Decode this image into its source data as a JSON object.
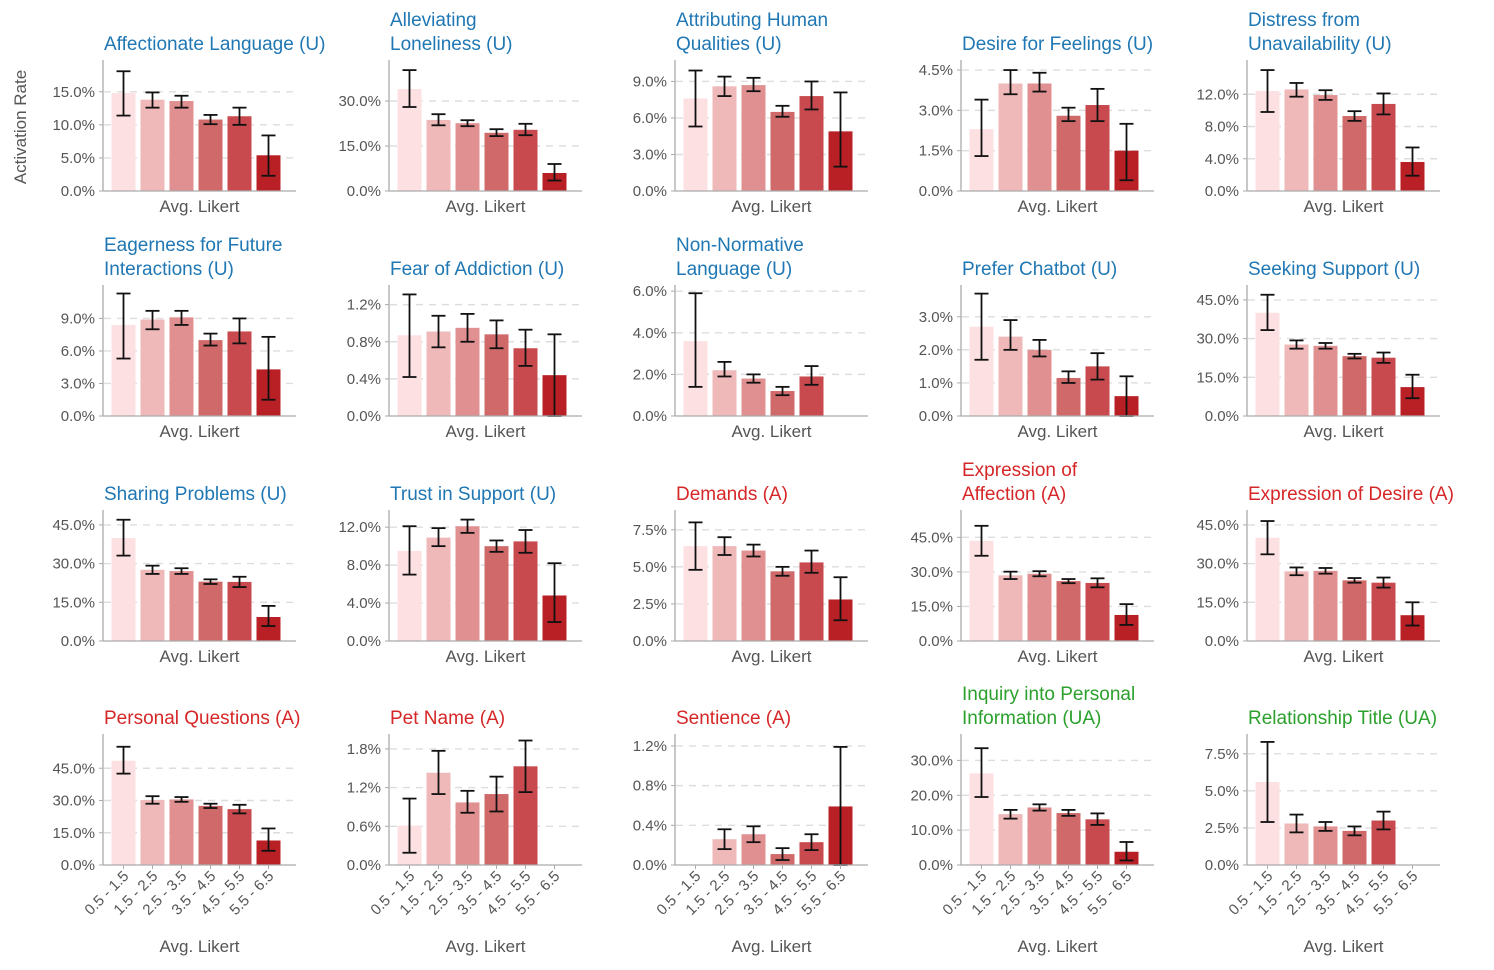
{
  "figure": {
    "ylabel": "Activation Rate",
    "xlabel": "Avg. Likert",
    "categories": [
      "0.5 - 1.5",
      "1.5 - 2.5",
      "2.5 - 3.5",
      "3.5 - 4.5",
      "4.5 - 5.5",
      "5.5 - 6.5"
    ],
    "bar_colors": [
      "#fde0e2",
      "#efb9b9",
      "#e09090",
      "#d06a6a",
      "#c84a4e",
      "#b82026"
    ],
    "title_colors": {
      "U": "#1f77b4",
      "A": "#d62728",
      "UA": "#2ca02c"
    }
  },
  "chart_data": [
    {
      "type": "bar",
      "title": [
        "Affectionate Language (U)"
      ],
      "group": "U",
      "ylim": [
        0,
        19.5
      ],
      "ticks": [
        0,
        5,
        10,
        15
      ],
      "tick_labels": [
        "0.0%",
        "5.0%",
        "10.0%",
        "15.0%"
      ],
      "values": [
        14.8,
        13.8,
        13.6,
        10.8,
        11.3,
        5.4
      ],
      "err_low": [
        11.4,
        12.6,
        12.6,
        10.1,
        10.0,
        2.3
      ],
      "err_high": [
        18.1,
        14.9,
        14.4,
        11.5,
        12.6,
        8.4
      ]
    },
    {
      "type": "bar",
      "title": [
        "Alleviating",
        "Loneliness (U)"
      ],
      "group": "U",
      "ylim": [
        0,
        43
      ],
      "ticks": [
        0,
        15,
        30
      ],
      "tick_labels": [
        "0.0%",
        "15.0%",
        "30.0%"
      ],
      "values": [
        34.0,
        23.7,
        22.6,
        19.4,
        20.4,
        6.0
      ],
      "err_low": [
        28.0,
        21.9,
        21.6,
        18.3,
        18.6,
        3.5
      ],
      "err_high": [
        40.3,
        25.6,
        23.6,
        20.6,
        22.4,
        9.0
      ]
    },
    {
      "type": "bar",
      "title": [
        "Attributing Human",
        "Qualities (U)"
      ],
      "group": "U",
      "ylim": [
        0,
        10.6
      ],
      "ticks": [
        0,
        3,
        6,
        9
      ],
      "tick_labels": [
        "0.0%",
        "3.0%",
        "6.0%",
        "9.0%"
      ],
      "values": [
        7.6,
        8.6,
        8.7,
        6.5,
        7.8,
        4.9
      ],
      "err_low": [
        5.3,
        7.8,
        8.2,
        6.1,
        6.7,
        2.0
      ],
      "err_high": [
        9.9,
        9.4,
        9.3,
        7.0,
        9.0,
        8.1
      ]
    },
    {
      "type": "bar",
      "title": [
        "Desire for Feelings (U)"
      ],
      "group": "U",
      "ylim": [
        0,
        4.8
      ],
      "ticks": [
        0,
        1.5,
        3,
        4.5
      ],
      "tick_labels": [
        "0.0%",
        "1.5%",
        "3.0%",
        "4.5%"
      ],
      "values": [
        2.3,
        4.0,
        4.0,
        2.8,
        3.2,
        1.5
      ],
      "err_low": [
        1.3,
        3.6,
        3.7,
        2.6,
        2.6,
        0.4
      ],
      "err_high": [
        3.4,
        4.5,
        4.4,
        3.1,
        3.8,
        2.5
      ]
    },
    {
      "type": "bar",
      "title": [
        "Distress from",
        "Unavailability (U)"
      ],
      "group": "U",
      "ylim": [
        0,
        16
      ],
      "ticks": [
        0,
        4,
        8,
        12
      ],
      "tick_labels": [
        "0.0%",
        "4.0%",
        "8.0%",
        "12.0%"
      ],
      "values": [
        12.4,
        12.6,
        11.9,
        9.3,
        10.8,
        3.6
      ],
      "err_low": [
        9.8,
        11.7,
        11.3,
        8.7,
        9.5,
        1.9
      ],
      "err_high": [
        15.0,
        13.4,
        12.5,
        9.9,
        12.1,
        5.4
      ]
    },
    {
      "type": "bar",
      "title": [
        "Eagerness for Future",
        "Interactions (U)"
      ],
      "group": "U",
      "ylim": [
        0,
        11.9
      ],
      "ticks": [
        0,
        3,
        6,
        9
      ],
      "tick_labels": [
        "0.0%",
        "3.0%",
        "6.0%",
        "9.0%"
      ],
      "values": [
        8.4,
        8.9,
        9.1,
        7.0,
        7.8,
        4.3
      ],
      "err_low": [
        5.3,
        8.0,
        8.4,
        6.5,
        6.7,
        1.5
      ],
      "err_high": [
        11.3,
        9.7,
        9.7,
        7.6,
        9.0,
        7.3
      ]
    },
    {
      "type": "bar",
      "title": [
        "Fear of Addiction (U)"
      ],
      "group": "U",
      "ylim": [
        0,
        1.39
      ],
      "ticks": [
        0,
        0.4,
        0.8,
        1.2
      ],
      "tick_labels": [
        "0.0%",
        "0.4%",
        "0.8%",
        "1.2%"
      ],
      "values": [
        0.87,
        0.91,
        0.95,
        0.88,
        0.73,
        0.44
      ],
      "err_low": [
        0.42,
        0.74,
        0.8,
        0.73,
        0.54,
        0.0
      ],
      "err_high": [
        1.31,
        1.08,
        1.1,
        1.03,
        0.93,
        0.88
      ]
    },
    {
      "type": "bar",
      "title": [
        "Non-Normative",
        "Language (U)"
      ],
      "group": "U",
      "ylim": [
        0,
        6.2
      ],
      "ticks": [
        0,
        2,
        4,
        6
      ],
      "tick_labels": [
        "0.0%",
        "2.0%",
        "4.0%",
        "6.0%"
      ],
      "values": [
        3.6,
        2.2,
        1.8,
        1.2,
        1.9,
        0.0
      ],
      "err_low": [
        1.4,
        1.9,
        1.6,
        1.0,
        1.5,
        0.0
      ],
      "err_high": [
        5.9,
        2.6,
        2.0,
        1.4,
        2.4,
        0.0
      ]
    },
    {
      "type": "bar",
      "title": [
        "Prefer Chatbot (U)"
      ],
      "group": "U",
      "ylim": [
        0,
        3.9
      ],
      "ticks": [
        0,
        1,
        2,
        3
      ],
      "tick_labels": [
        "0.0%",
        "1.0%",
        "2.0%",
        "3.0%"
      ],
      "values": [
        2.7,
        2.4,
        2.0,
        1.15,
        1.5,
        0.6
      ],
      "err_low": [
        1.7,
        2.0,
        1.8,
        1.0,
        1.1,
        0.0
      ],
      "err_high": [
        3.7,
        2.9,
        2.3,
        1.35,
        1.9,
        1.2
      ]
    },
    {
      "type": "bar",
      "title": [
        "Seeking Support (U)"
      ],
      "group": "U",
      "ylim": [
        0,
        50
      ],
      "ticks": [
        0,
        15,
        30,
        45
      ],
      "tick_labels": [
        "0.0%",
        "15.0%",
        "30.0%",
        "45.0%"
      ],
      "values": [
        40.0,
        27.7,
        27.2,
        23.2,
        22.6,
        11.2
      ],
      "err_low": [
        33.3,
        26.1,
        26.1,
        22.3,
        20.6,
        6.9
      ],
      "err_high": [
        47.0,
        29.3,
        28.3,
        24.1,
        24.6,
        16.0
      ]
    },
    {
      "type": "bar",
      "title": [
        "Sharing Problems (U)"
      ],
      "group": "U",
      "ylim": [
        0,
        50
      ],
      "ticks": [
        0,
        15,
        30,
        45
      ],
      "tick_labels": [
        "0.0%",
        "15.0%",
        "30.0%",
        "45.0%"
      ],
      "values": [
        39.9,
        27.6,
        27.1,
        23.0,
        22.9,
        9.3
      ],
      "err_low": [
        33.1,
        26.0,
        26.0,
        22.1,
        20.9,
        5.8
      ],
      "err_high": [
        47.0,
        29.2,
        28.2,
        23.9,
        24.9,
        13.6
      ]
    },
    {
      "type": "bar",
      "title": [
        "Trust in Support (U)"
      ],
      "group": "U",
      "ylim": [
        0,
        13.6
      ],
      "ticks": [
        0,
        4,
        8,
        12
      ],
      "tick_labels": [
        "0.0%",
        "4.0%",
        "8.0%",
        "12.0%"
      ],
      "values": [
        9.5,
        10.9,
        12.1,
        10.0,
        10.5,
        4.8
      ],
      "err_low": [
        7.0,
        10.0,
        11.4,
        9.4,
        9.3,
        2.0
      ],
      "err_high": [
        12.1,
        11.9,
        12.8,
        10.6,
        11.7,
        8.2
      ]
    },
    {
      "type": "bar",
      "title": [
        "Demands (A)"
      ],
      "group": "A",
      "ylim": [
        0,
        8.7
      ],
      "ticks": [
        0,
        2.5,
        5,
        7.5
      ],
      "tick_labels": [
        "0.0%",
        "2.5%",
        "5.0%",
        "7.5%"
      ],
      "values": [
        6.4,
        6.4,
        6.1,
        4.7,
        5.3,
        2.8
      ],
      "err_low": [
        4.8,
        5.8,
        5.7,
        4.4,
        4.6,
        1.4
      ],
      "err_high": [
        8.0,
        7.0,
        6.5,
        5.0,
        6.1,
        4.3
      ]
    },
    {
      "type": "bar",
      "title": [
        "Expression of",
        "Affection (A)"
      ],
      "group": "A",
      "ylim": [
        0,
        56
      ],
      "ticks": [
        0,
        15,
        30,
        45
      ],
      "tick_labels": [
        "0.0%",
        "15.0%",
        "30.0%",
        "45.0%"
      ],
      "values": [
        43.5,
        28.5,
        29.2,
        26.0,
        25.2,
        11.3
      ],
      "err_low": [
        37.0,
        26.9,
        28.1,
        25.1,
        23.3,
        7.0
      ],
      "err_high": [
        50.0,
        30.1,
        30.3,
        26.9,
        27.2,
        16.0
      ]
    },
    {
      "type": "bar",
      "title": [
        "Expression of Desire (A)"
      ],
      "group": "A",
      "ylim": [
        0,
        50
      ],
      "ticks": [
        0,
        15,
        30,
        45
      ],
      "tick_labels": [
        "0.0%",
        "15.0%",
        "30.0%",
        "45.0%"
      ],
      "values": [
        40.0,
        27.0,
        27.2,
        23.5,
        22.6,
        10.0
      ],
      "err_low": [
        33.6,
        25.5,
        26.1,
        22.6,
        20.7,
        6.0
      ],
      "err_high": [
        46.5,
        28.5,
        28.3,
        24.4,
        24.6,
        15.0
      ]
    },
    {
      "type": "bar",
      "title": [
        "Personal Questions (A)"
      ],
      "group": "A",
      "ylim": [
        0,
        60
      ],
      "ticks": [
        0,
        15,
        30,
        45
      ],
      "tick_labels": [
        "0.0%",
        "15.0%",
        "30.0%",
        "45.0%"
      ],
      "values": [
        48.5,
        30.2,
        30.5,
        27.5,
        26.0,
        11.4
      ],
      "err_low": [
        42.5,
        28.5,
        29.4,
        26.5,
        24.0,
        6.6
      ],
      "err_high": [
        55.0,
        32.0,
        31.6,
        28.5,
        28.0,
        17.0
      ]
    },
    {
      "type": "bar",
      "title": [
        "Pet Name (A)"
      ],
      "group": "A",
      "ylim": [
        0,
        2.0
      ],
      "ticks": [
        0,
        0.6,
        1.2,
        1.8
      ],
      "tick_labels": [
        "0.0%",
        "0.6%",
        "1.2%",
        "1.8%"
      ],
      "values": [
        0.61,
        1.43,
        0.97,
        1.1,
        1.53,
        0.0
      ],
      "err_low": [
        0.19,
        1.1,
        0.81,
        0.83,
        1.13,
        0.0
      ],
      "err_high": [
        1.03,
        1.77,
        1.15,
        1.37,
        1.93,
        0.0
      ]
    },
    {
      "type": "bar",
      "title": [
        "Sentience (A)"
      ],
      "group": "A",
      "ylim": [
        0,
        1.3
      ],
      "ticks": [
        0,
        0.4,
        0.8,
        1.2
      ],
      "tick_labels": [
        "0.0%",
        "0.4%",
        "0.8%",
        "1.2%"
      ],
      "values": [
        0.0,
        0.26,
        0.31,
        0.11,
        0.23,
        0.59
      ],
      "err_low": [
        0.0,
        0.16,
        0.23,
        0.05,
        0.15,
        0.0
      ],
      "err_high": [
        0.0,
        0.36,
        0.39,
        0.17,
        0.31,
        1.19
      ]
    },
    {
      "type": "bar",
      "title": [
        "Inquiry into Personal",
        "Information (UA)"
      ],
      "group": "UA",
      "ylim": [
        0,
        37
      ],
      "ticks": [
        0,
        10,
        20,
        30
      ],
      "tick_labels": [
        "0.0%",
        "10.0%",
        "20.0%",
        "30.0%"
      ],
      "values": [
        26.3,
        14.6,
        16.5,
        14.9,
        13.1,
        3.8
      ],
      "err_low": [
        19.5,
        13.3,
        15.6,
        14.1,
        11.5,
        1.3
      ],
      "err_high": [
        33.5,
        15.8,
        17.4,
        15.8,
        14.8,
        6.6
      ]
    },
    {
      "type": "bar",
      "title": [
        "Relationship Title (UA)"
      ],
      "group": "UA",
      "ylim": [
        0,
        8.7
      ],
      "ticks": [
        0,
        2.5,
        5,
        7.5
      ],
      "tick_labels": [
        "0.0%",
        "2.5%",
        "5.0%",
        "7.5%"
      ],
      "values": [
        5.6,
        2.8,
        2.6,
        2.3,
        3.0,
        0.0
      ],
      "err_low": [
        2.9,
        2.2,
        2.3,
        2.0,
        2.4,
        0.0
      ],
      "err_high": [
        8.3,
        3.4,
        2.9,
        2.6,
        3.6,
        0.0
      ]
    }
  ]
}
